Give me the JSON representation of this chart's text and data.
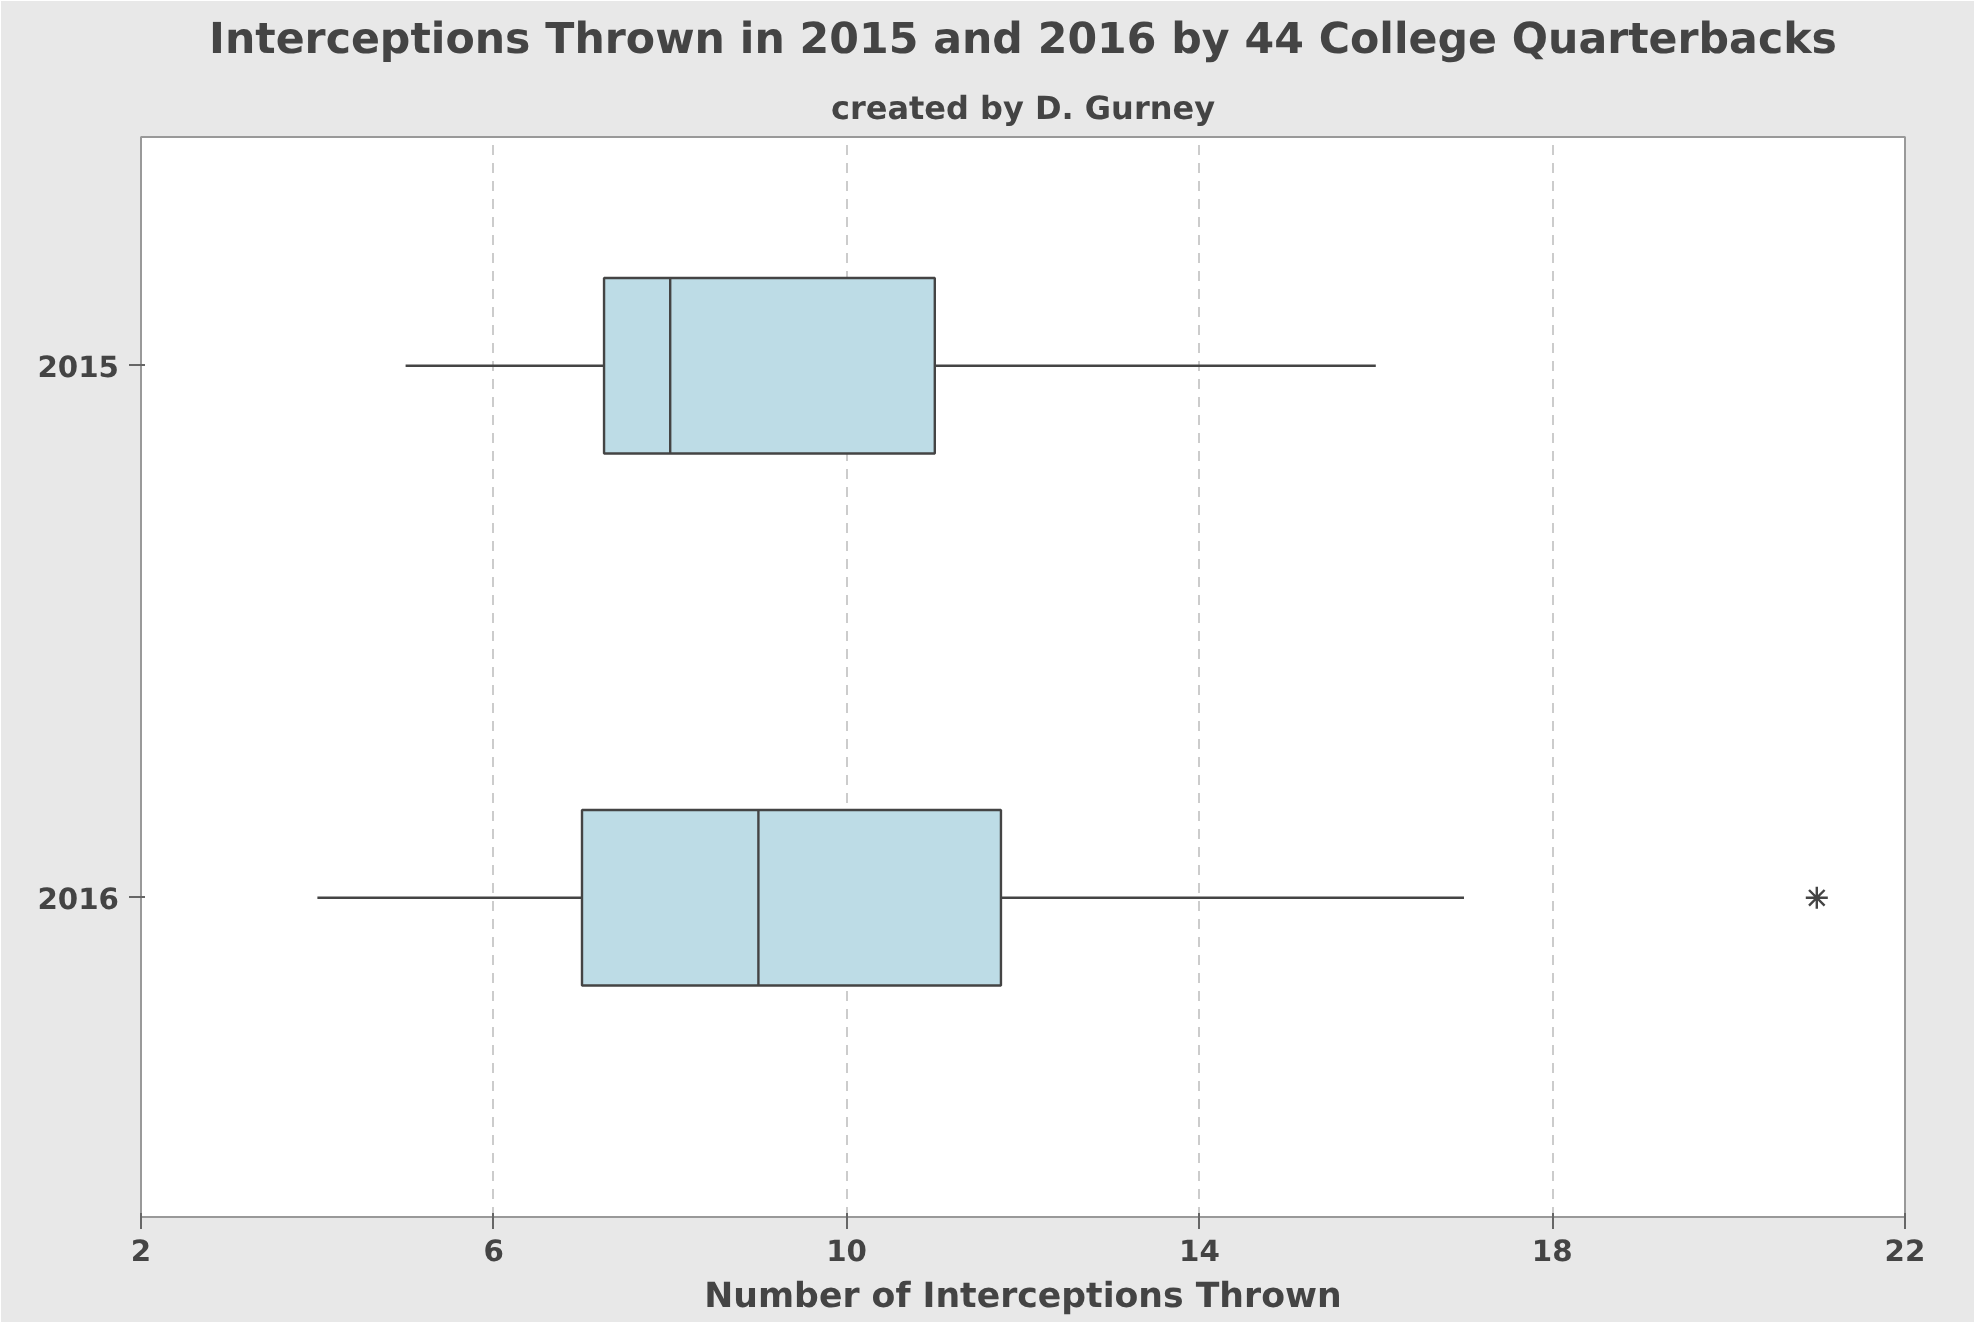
{
  "chart_data": {
    "type": "box",
    "orientation": "horizontal",
    "title": "Interceptions Thrown in 2015 and 2016 by 44 College Quarterbacks",
    "subtitle": "created by D. Gurney",
    "xlabel": "Number of Interceptions Thrown",
    "categories": [
      "2015",
      "2016"
    ],
    "color": "#bddce6",
    "boxes": [
      {
        "low": 5,
        "q1": 7.25,
        "median": 8,
        "q3": 11,
        "high": 16
      },
      {
        "low": 4,
        "q1": 7,
        "median": 9,
        "q3": 11.75,
        "high": 17,
        "outliers": [
          21
        ]
      }
    ],
    "xlim": [
      2,
      22
    ],
    "xticks": [
      2,
      6,
      10,
      14,
      18,
      22
    ],
    "grid": "x",
    "marker": "star"
  }
}
